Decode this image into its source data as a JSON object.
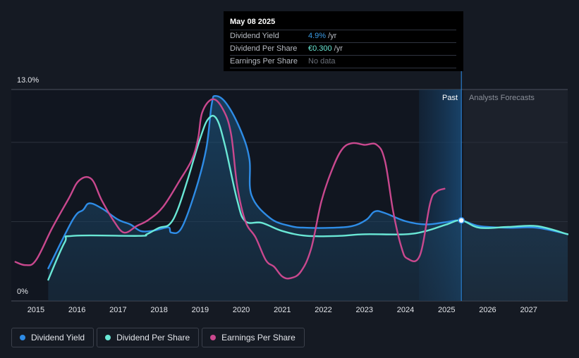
{
  "tooltip": {
    "date": "May 08 2025",
    "rows": [
      {
        "label": "Dividend Yield",
        "value": "4.9%",
        "unit": "/yr"
      },
      {
        "label": "Dividend Per Share",
        "value": "€0.300",
        "unit": "/yr"
      },
      {
        "label": "Earnings Per Share",
        "value": "No data",
        "unit": ""
      }
    ]
  },
  "labels": {
    "past": "Past",
    "forecast": "Analysts Forecasts"
  },
  "legend": [
    {
      "label": "Dividend Yield",
      "color": "#2e8ce6"
    },
    {
      "label": "Dividend Per Share",
      "color": "#6ae8d6"
    },
    {
      "label": "Earnings Per Share",
      "color": "#c9488e"
    }
  ],
  "chart_data": {
    "type": "line",
    "title": "",
    "xlabel": "",
    "ylabel": "",
    "ylim": [
      0,
      13
    ],
    "xlim": [
      2014.4,
      2027.95
    ],
    "y_tick_labels": [
      "13.0%",
      "0%"
    ],
    "x_ticks": [
      2015,
      2016,
      2017,
      2018,
      2019,
      2020,
      2021,
      2022,
      2023,
      2024,
      2025,
      2026,
      2027
    ],
    "past_forecast_split": 2025.36,
    "highlight_start": 2024.33,
    "series": [
      {
        "name": "Dividend Yield",
        "color": "#2e8ce6",
        "area": true,
        "points": [
          [
            2015.3,
            2.0
          ],
          [
            2015.9,
            5.0
          ],
          [
            2016.15,
            5.6
          ],
          [
            2016.3,
            6.0
          ],
          [
            2016.6,
            5.7
          ],
          [
            2017.0,
            5.0
          ],
          [
            2017.3,
            4.7
          ],
          [
            2017.55,
            4.3
          ],
          [
            2017.8,
            4.3
          ],
          [
            2018.0,
            4.4
          ],
          [
            2018.15,
            4.5
          ],
          [
            2018.25,
            4.5
          ],
          [
            2018.3,
            4.2
          ],
          [
            2018.55,
            4.5
          ],
          [
            2018.9,
            6.9
          ],
          [
            2019.15,
            9.4
          ],
          [
            2019.28,
            12.1
          ],
          [
            2019.38,
            12.6
          ],
          [
            2019.65,
            12.1
          ],
          [
            2020.0,
            10.4
          ],
          [
            2020.2,
            8.7
          ],
          [
            2020.25,
            6.5
          ],
          [
            2020.7,
            5.1
          ],
          [
            2021.2,
            4.6
          ],
          [
            2021.6,
            4.5
          ],
          [
            2022.2,
            4.5
          ],
          [
            2022.7,
            4.6
          ],
          [
            2023.05,
            5.0
          ],
          [
            2023.25,
            5.5
          ],
          [
            2023.5,
            5.4
          ],
          [
            2024.0,
            4.9
          ],
          [
            2024.5,
            4.7
          ],
          [
            2025.0,
            4.85
          ],
          [
            2025.36,
            4.95
          ],
          [
            2025.8,
            4.6
          ],
          [
            2026.5,
            4.5
          ],
          [
            2027.2,
            4.5
          ],
          [
            2027.95,
            4.1
          ]
        ]
      },
      {
        "name": "Dividend Per Share",
        "color": "#6ae8d6",
        "area": false,
        "points": [
          [
            2015.3,
            1.3
          ],
          [
            2015.7,
            3.6
          ],
          [
            2015.9,
            4.0
          ],
          [
            2017.5,
            4.0
          ],
          [
            2017.7,
            4.1
          ],
          [
            2018.0,
            4.5
          ],
          [
            2018.25,
            4.7
          ],
          [
            2018.45,
            5.6
          ],
          [
            2018.7,
            7.5
          ],
          [
            2019.0,
            10.0
          ],
          [
            2019.2,
            11.2
          ],
          [
            2019.4,
            11.2
          ],
          [
            2019.6,
            9.6
          ],
          [
            2019.9,
            6.2
          ],
          [
            2020.1,
            4.9
          ],
          [
            2020.5,
            4.8
          ],
          [
            2021.0,
            4.3
          ],
          [
            2021.6,
            4.0
          ],
          [
            2022.4,
            4.0
          ],
          [
            2023.0,
            4.1
          ],
          [
            2024.0,
            4.1
          ],
          [
            2024.5,
            4.3
          ],
          [
            2025.0,
            4.7
          ],
          [
            2025.36,
            4.95
          ],
          [
            2025.8,
            4.5
          ],
          [
            2026.5,
            4.55
          ],
          [
            2027.2,
            4.6
          ],
          [
            2027.95,
            4.1
          ]
        ]
      },
      {
        "name": "Earnings Per Share",
        "color": "#c9488e",
        "area": false,
        "points": [
          [
            2014.5,
            2.4
          ],
          [
            2014.75,
            2.2
          ],
          [
            2015.0,
            2.5
          ],
          [
            2015.4,
            4.5
          ],
          [
            2015.8,
            6.3
          ],
          [
            2016.05,
            7.4
          ],
          [
            2016.35,
            7.5
          ],
          [
            2016.6,
            6.2
          ],
          [
            2016.9,
            4.9
          ],
          [
            2017.15,
            4.2
          ],
          [
            2017.45,
            4.6
          ],
          [
            2017.75,
            5.0
          ],
          [
            2018.1,
            5.8
          ],
          [
            2018.5,
            7.4
          ],
          [
            2018.8,
            8.7
          ],
          [
            2018.95,
            10.0
          ],
          [
            2019.05,
            11.6
          ],
          [
            2019.3,
            12.4
          ],
          [
            2019.55,
            11.8
          ],
          [
            2019.75,
            10.3
          ],
          [
            2019.9,
            7.1
          ],
          [
            2020.1,
            4.9
          ],
          [
            2020.35,
            3.9
          ],
          [
            2020.6,
            2.5
          ],
          [
            2020.8,
            2.1
          ],
          [
            2021.0,
            1.5
          ],
          [
            2021.2,
            1.4
          ],
          [
            2021.45,
            1.8
          ],
          [
            2021.7,
            3.2
          ],
          [
            2021.95,
            6.1
          ],
          [
            2022.2,
            8.0
          ],
          [
            2022.45,
            9.3
          ],
          [
            2022.7,
            9.7
          ],
          [
            2023.0,
            9.6
          ],
          [
            2023.3,
            9.6
          ],
          [
            2023.5,
            8.6
          ],
          [
            2023.7,
            5.5
          ],
          [
            2023.9,
            3.3
          ],
          [
            2024.05,
            2.6
          ],
          [
            2024.35,
            2.8
          ],
          [
            2024.6,
            6.0
          ],
          [
            2024.75,
            6.7
          ],
          [
            2024.95,
            6.9
          ]
        ]
      }
    ]
  }
}
